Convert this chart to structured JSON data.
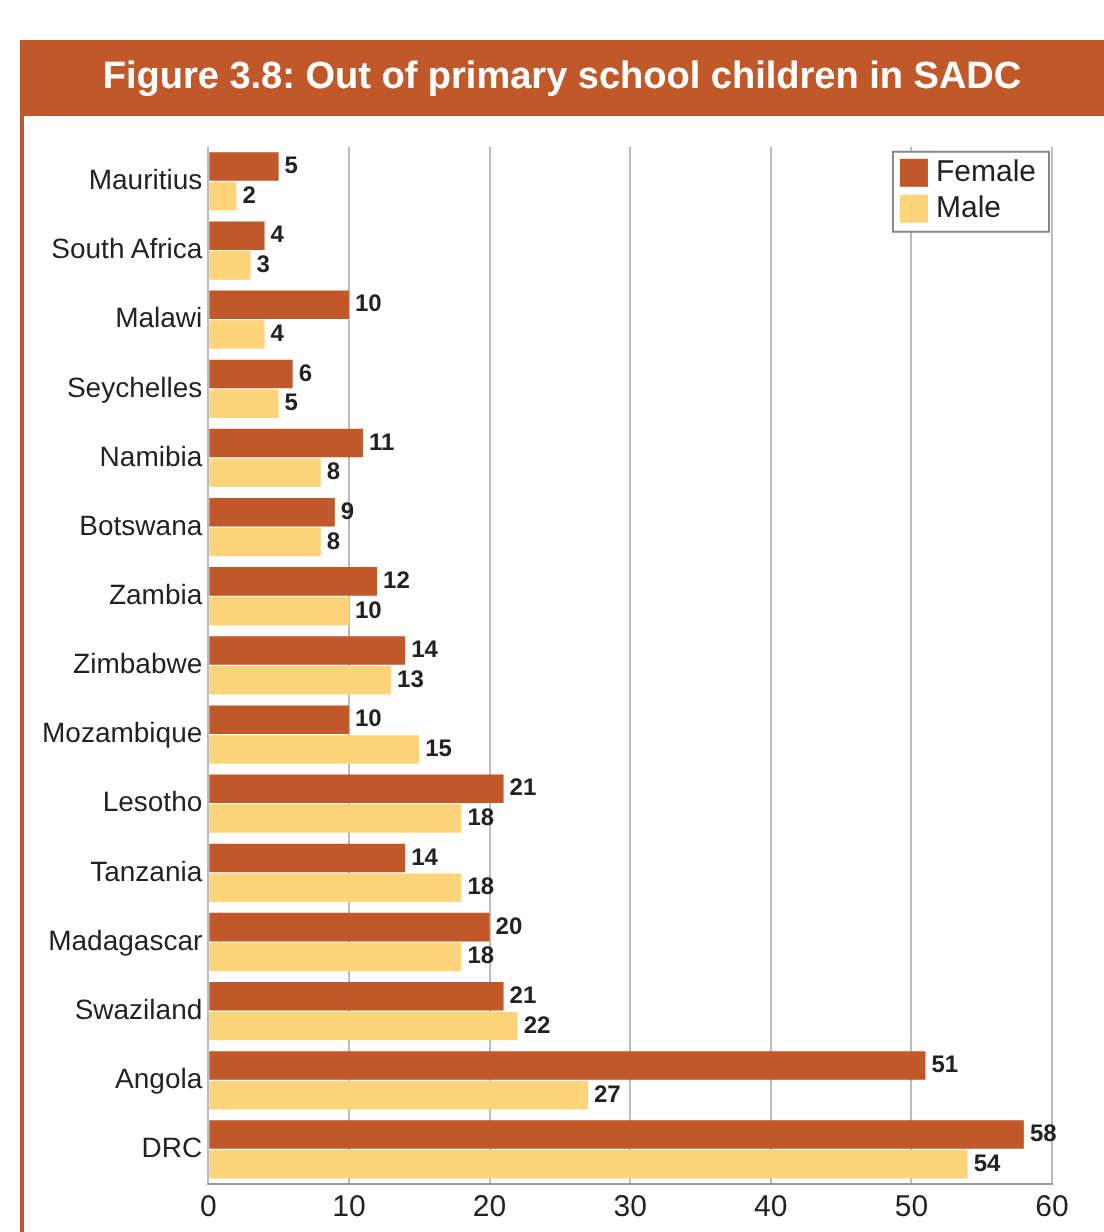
{
  "chart_data": {
    "type": "bar",
    "orientation": "horizontal",
    "title": "Figure 3.8: Out of primary school children in SADC",
    "categories": [
      "Mauritius",
      "South Africa",
      "Malawi",
      "Seychelles",
      "Namibia",
      "Botswana",
      "Zambia",
      "Zimbabwe",
      "Mozambique",
      "Lesotho",
      "Tanzania",
      "Madagascar",
      "Swaziland",
      "Angola",
      "DRC"
    ],
    "series": [
      {
        "name": "Female",
        "color": "#c0582a",
        "values": [
          5,
          4,
          10,
          6,
          11,
          9,
          12,
          14,
          10,
          21,
          14,
          20,
          21,
          51,
          58
        ]
      },
      {
        "name": "Male",
        "color": "#fdd47a",
        "values": [
          2,
          3,
          4,
          5,
          8,
          8,
          10,
          13,
          15,
          18,
          18,
          18,
          22,
          27,
          54
        ]
      }
    ],
    "xlim": [
      0,
      60
    ],
    "xticks": [
      0,
      10,
      20,
      30,
      40,
      50,
      60
    ],
    "grid": "x",
    "legend": "top right",
    "data_labels": true
  }
}
